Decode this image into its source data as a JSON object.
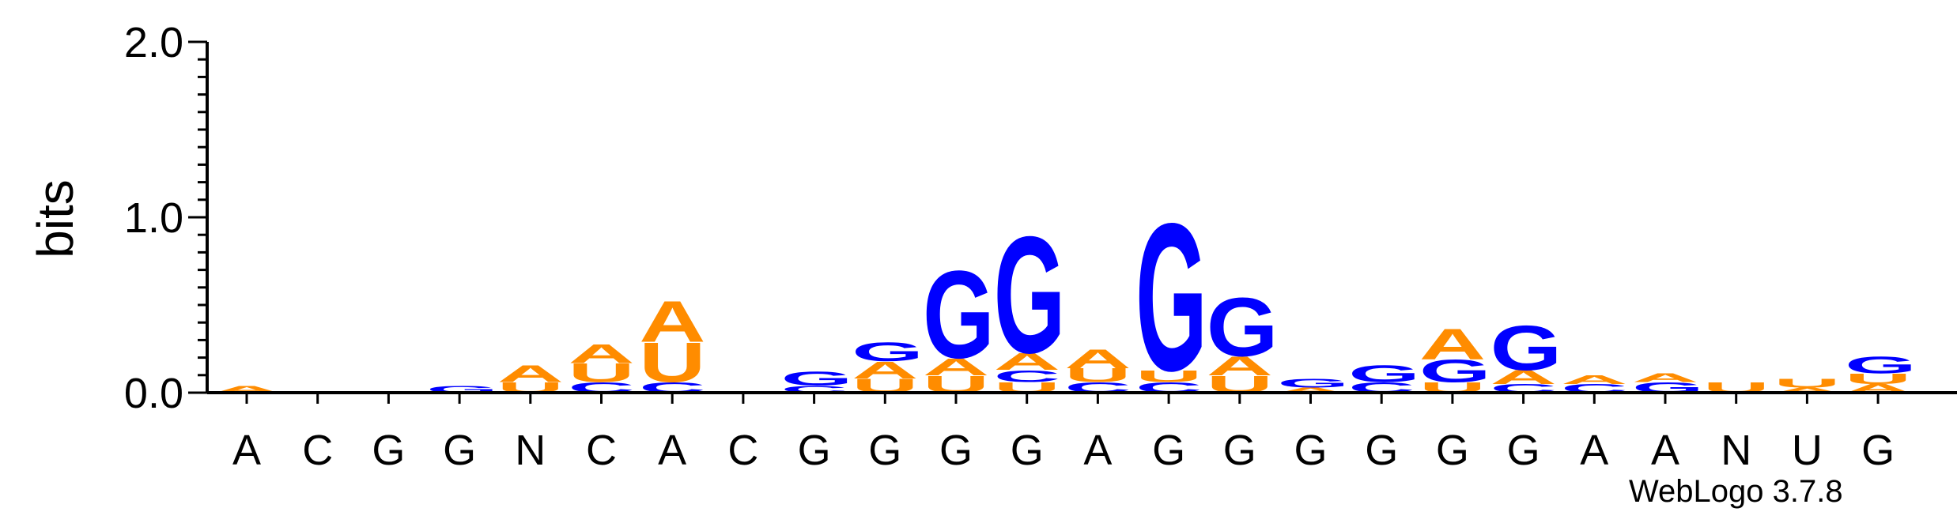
{
  "chart_data": {
    "type": "sequence-logo",
    "ylabel": "bits",
    "ylim": [
      0,
      2
    ],
    "yticks": [
      "0.0",
      "1.0",
      "2.0"
    ],
    "colors": {
      "A": "#FF8C00",
      "U": "#FF8C00",
      "G": "#0000FF",
      "C": "#0000FF"
    },
    "positions": [
      {
        "label": "A",
        "stack": [
          [
            "A",
            0.04
          ]
        ]
      },
      {
        "label": "C",
        "stack": [
          [
            "A",
            0.01
          ]
        ]
      },
      {
        "label": "G",
        "stack": [
          [
            "G",
            0.01
          ]
        ]
      },
      {
        "label": "G",
        "stack": [
          [
            "G",
            0.04
          ]
        ]
      },
      {
        "label": "N",
        "stack": [
          [
            "U",
            0.06
          ],
          [
            "A",
            0.1
          ]
        ]
      },
      {
        "label": "C",
        "stack": [
          [
            "C",
            0.06
          ],
          [
            "U",
            0.11
          ],
          [
            "A",
            0.11
          ]
        ]
      },
      {
        "label": "A",
        "stack": [
          [
            "C",
            0.06
          ],
          [
            "U",
            0.23
          ],
          [
            "A",
            0.24
          ]
        ]
      },
      {
        "label": "C",
        "stack": []
      },
      {
        "label": "G",
        "stack": [
          [
            "C",
            0.04
          ],
          [
            "G",
            0.08
          ]
        ]
      },
      {
        "label": "G",
        "stack": [
          [
            "U",
            0.08
          ],
          [
            "A",
            0.1
          ],
          [
            "G",
            0.11
          ]
        ]
      },
      {
        "label": "G",
        "stack": [
          [
            "U",
            0.1
          ],
          [
            "A",
            0.1
          ],
          [
            "G",
            0.51
          ]
        ]
      },
      {
        "label": "G",
        "stack": [
          [
            "U",
            0.06
          ],
          [
            "C",
            0.07
          ],
          [
            "A",
            0.1
          ],
          [
            "G",
            0.68
          ]
        ]
      },
      {
        "label": "A",
        "stack": [
          [
            "C",
            0.06
          ],
          [
            "U",
            0.08
          ],
          [
            "A",
            0.11
          ]
        ]
      },
      {
        "label": "G",
        "stack": [
          [
            "C",
            0.06
          ],
          [
            "U",
            0.07
          ],
          [
            "G",
            0.86
          ]
        ]
      },
      {
        "label": "G",
        "stack": [
          [
            "U",
            0.1
          ],
          [
            "A",
            0.11
          ],
          [
            "G",
            0.34
          ]
        ]
      },
      {
        "label": "G",
        "stack": [
          [
            "A",
            0.03
          ],
          [
            "G",
            0.05
          ]
        ]
      },
      {
        "label": "G",
        "stack": [
          [
            "C",
            0.06
          ],
          [
            "G",
            0.1
          ]
        ]
      },
      {
        "label": "G",
        "stack": [
          [
            "U",
            0.06
          ],
          [
            "G",
            0.13
          ],
          [
            "A",
            0.18
          ]
        ]
      },
      {
        "label": "G",
        "stack": [
          [
            "C",
            0.05
          ],
          [
            "A",
            0.08
          ],
          [
            "G",
            0.26
          ]
        ]
      },
      {
        "label": "A",
        "stack": [
          [
            "C",
            0.05
          ],
          [
            "A",
            0.05
          ]
        ]
      },
      {
        "label": "A",
        "stack": [
          [
            "G",
            0.06
          ],
          [
            "A",
            0.05
          ]
        ]
      },
      {
        "label": "N",
        "stack": [
          [
            "U",
            0.06
          ]
        ]
      },
      {
        "label": "U",
        "stack": [
          [
            "A",
            0.03
          ],
          [
            "U",
            0.05
          ]
        ]
      },
      {
        "label": "G",
        "stack": [
          [
            "A",
            0.05
          ],
          [
            "U",
            0.06
          ],
          [
            "G",
            0.1
          ]
        ]
      }
    ]
  },
  "footer": {
    "credit": "WebLogo 3.7.8"
  }
}
